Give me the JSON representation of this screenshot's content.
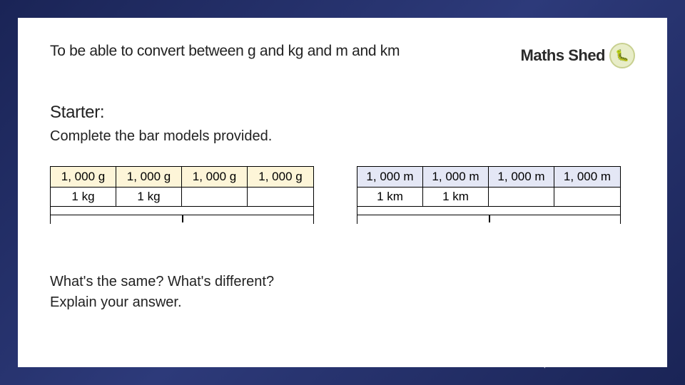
{
  "learning_objective": "To be able to convert between g and kg and m and km",
  "brand": {
    "name": "Maths Shed"
  },
  "starter_heading": "Starter:",
  "starter_instruction": "Complete the bar models provided.",
  "bar_model_left": {
    "top_cells": [
      "1, 000 g",
      "1, 000 g",
      "1, 000 g",
      "1, 000 g"
    ],
    "mid_cells": [
      "1 kg",
      "1 kg",
      "",
      ""
    ],
    "top_bg": "#fdf5d8",
    "mid_bg": "#ffffff"
  },
  "bar_model_right": {
    "top_cells": [
      "1, 000 m",
      "1, 000 m",
      "1, 000 m",
      "1, 000 m"
    ],
    "mid_cells": [
      "1 km",
      "1 km",
      "",
      ""
    ],
    "top_bg": "#e4e7f5",
    "mid_bg": "#ffffff"
  },
  "question1": "What's the same? What's different?",
  "question2": "Explain your answer.",
  "colors": {
    "slide_bg": "#ffffff",
    "text": "#222222",
    "border": "#000000",
    "outer_bg_start": "#1a2456",
    "outer_bg_end": "#2d3a7a"
  }
}
